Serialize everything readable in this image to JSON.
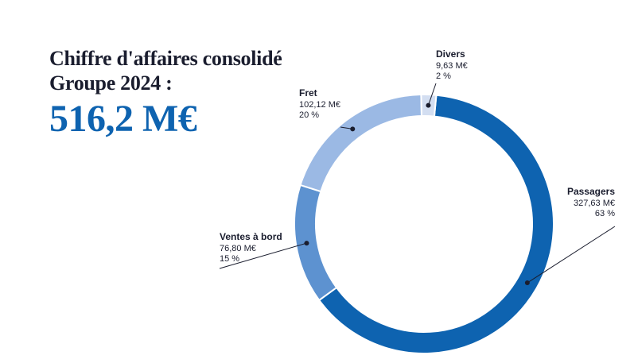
{
  "title": {
    "line1": "Chiffre d'affaires consolidé",
    "line2": "Groupe 2024 :"
  },
  "total": "516,2 M€",
  "chart_data": {
    "type": "pie",
    "categories": [
      "Passagers",
      "Ventes à bord",
      "Fret",
      "Divers"
    ],
    "values": [
      327.63,
      76.8,
      102.12,
      9.63
    ],
    "value_labels": [
      "327,63 M€",
      "76,80 M€",
      "102,12 M€",
      "9,63 M€"
    ],
    "percent_labels": [
      "63 %",
      "15 %",
      "20 %",
      "2 %"
    ],
    "colors": [
      "#0e63b0",
      "#5d92d0",
      "#9bb9e4",
      "#d3def1"
    ],
    "donut": true
  }
}
